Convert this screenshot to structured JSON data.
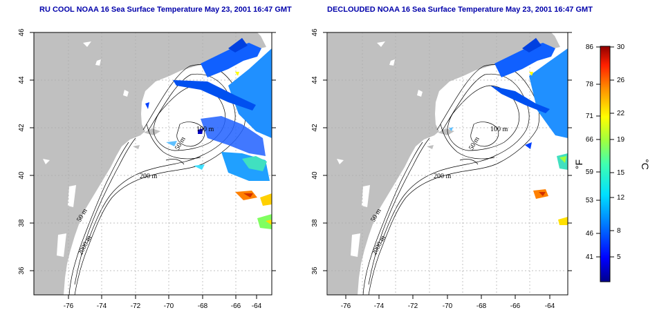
{
  "panels": [
    {
      "title": "RU COOL NOAA 16 Sea Surface Temperature May 23, 2001 16:47 GMT",
      "contour_labels": [
        "100 m",
        "50 m",
        "200 m",
        "50 m",
        "2000 m"
      ]
    },
    {
      "title": "DECLOUDED NOAA 16 Sea Surface Temperature May 23, 2001 16:47 GMT",
      "contour_labels": [
        "100 m",
        "50 m",
        "200 m",
        "50 m",
        "2000 m"
      ]
    }
  ],
  "axes": {
    "x_ticks": [
      "-76",
      "-74",
      "-72",
      "-70",
      "-68",
      "-66",
      "-64"
    ],
    "y_ticks": [
      "46",
      "44",
      "42",
      "40",
      "38",
      "36"
    ]
  },
  "colorbar": {
    "f_label": "°F",
    "c_label": "°C",
    "f_ticks": [
      "86",
      "78",
      "71",
      "66",
      "59",
      "53",
      "46",
      "41"
    ],
    "c_ticks": [
      "30",
      "26",
      "22",
      "19",
      "15",
      "12",
      "8",
      "5"
    ]
  },
  "colors": {
    "title": "#0000aa",
    "land": "#c0c0c0",
    "grid": "#aaaaaa"
  }
}
